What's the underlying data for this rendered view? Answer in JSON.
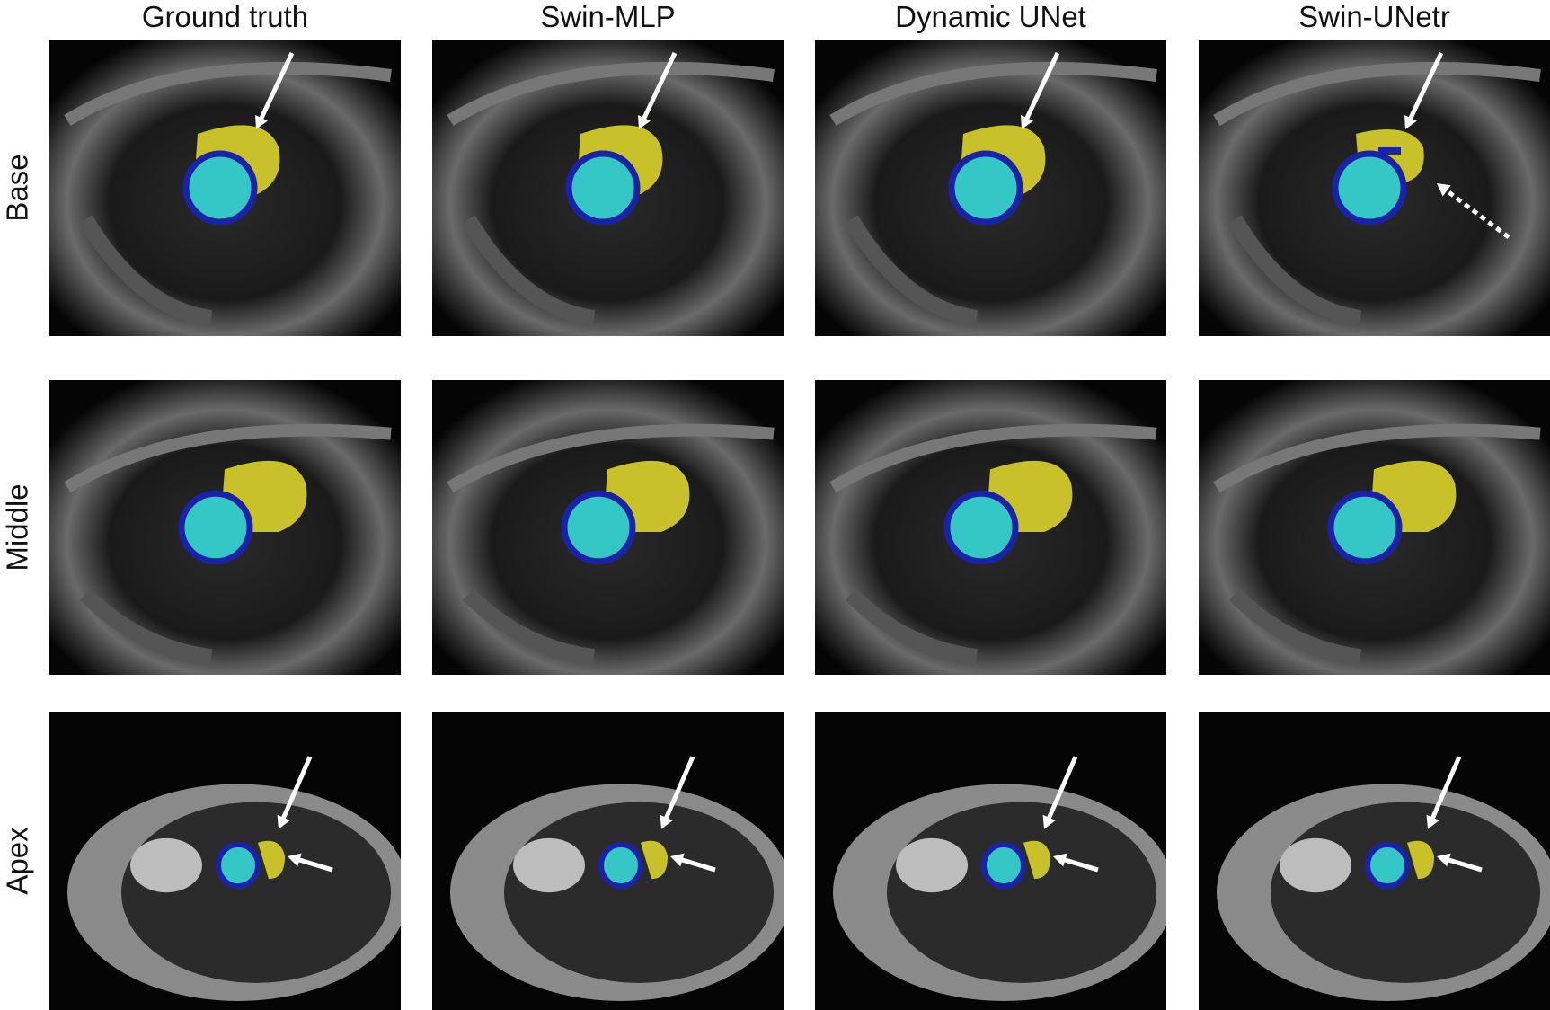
{
  "columns": [
    "Ground truth",
    "Swin-MLP",
    "Dynamic UNet",
    "Swin-UNetr"
  ],
  "rows": [
    "Base",
    "Middle",
    "Apex"
  ],
  "colors": {
    "right_ventricle": "#c8c12a",
    "lv_cavity": "#35c6c6",
    "myocardium": "#1a23a8",
    "arrow": "#ffffff"
  },
  "annotations": {
    "Base": {
      "solid_arrow_top": true,
      "dashed_arrow_all": false,
      "dashed_arrow_columns": [
        "Swin-UNetr"
      ]
    },
    "Middle": {
      "solid_arrow_top": false
    },
    "Apex": {
      "solid_arrow_top": true,
      "solid_arrow_right": true
    }
  }
}
